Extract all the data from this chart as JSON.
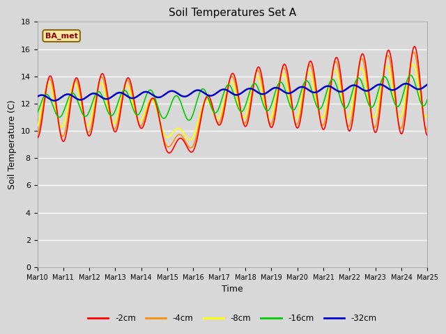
{
  "title": "Soil Temperatures Set A",
  "xlabel": "Time",
  "ylabel": "Soil Temperature (C)",
  "ylim": [
    0,
    18
  ],
  "yticks": [
    0,
    2,
    4,
    6,
    8,
    10,
    12,
    14,
    16,
    18
  ],
  "fig_bg_color": "#d8d8d8",
  "plot_bg_color": "#d8d8d8",
  "grid_color": "#ffffff",
  "annotation_text": "BA_met",
  "annotation_color": "#8b0000",
  "annotation_bg": "#f5e6a0",
  "annotation_edge": "#8b6914",
  "series": {
    "-2cm": {
      "color": "#ff0000",
      "lw": 1.2
    },
    "-4cm": {
      "color": "#ff8c00",
      "lw": 1.2
    },
    "-8cm": {
      "color": "#ffff00",
      "lw": 1.2
    },
    "-16cm": {
      "color": "#00cc00",
      "lw": 1.2
    },
    "-32cm": {
      "color": "#0000cd",
      "lw": 1.8
    }
  },
  "xtick_labels": [
    "Mar 10",
    "Mar 11",
    "Mar 12",
    "Mar 13",
    "Mar 14",
    "Mar 15",
    "Mar 16",
    "Mar 17",
    "Mar 18",
    "Mar 19",
    "Mar 20",
    "Mar 21",
    "Mar 22",
    "Mar 23",
    "Mar 24",
    "Mar 25"
  ],
  "n_points": 720,
  "days": 15
}
